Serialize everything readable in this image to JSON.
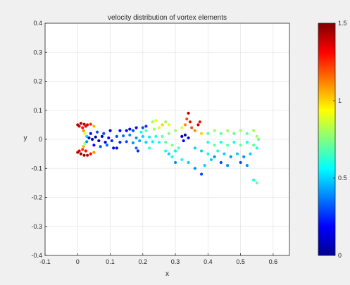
{
  "chart_data": {
    "type": "scatter",
    "title": "velocity distribution of vortex elements",
    "xlabel": "x",
    "ylabel": "y",
    "xlim": [
      -0.1,
      0.65
    ],
    "ylim": [
      -0.4,
      0.4
    ],
    "xticks": [
      -0.1,
      0,
      0.1,
      0.2,
      0.3,
      0.4,
      0.5,
      0.6
    ],
    "yticks": [
      -0.4,
      -0.3,
      -0.2,
      -0.1,
      0,
      0.1,
      0.2,
      0.3,
      0.4
    ],
    "xtick_labels": [
      "-0.1",
      "0",
      "0.1",
      "0.2",
      "0.3",
      "0.4",
      "0.5",
      "0.6"
    ],
    "ytick_labels": [
      "-0.4",
      "-0.3",
      "-0.2",
      "-0.1",
      "0",
      "0.1",
      "0.2",
      "0.3",
      "0.4"
    ],
    "grid": true,
    "colormap": "jet",
    "colorbar": {
      "limits": [
        0,
        1.5
      ],
      "ticks": [
        0,
        0.5,
        1,
        1.5
      ],
      "tick_labels": [
        "0",
        "0.5",
        "1",
        "1.5"
      ]
    },
    "points": [
      [
        0.0,
        0.05,
        1.4
      ],
      [
        0.01,
        0.055,
        1.45
      ],
      [
        0.02,
        0.052,
        1.4
      ],
      [
        0.03,
        0.05,
        1.35
      ],
      [
        0.04,
        0.052,
        1.25
      ],
      [
        0.05,
        0.045,
        1.05
      ],
      [
        0.005,
        0.045,
        1.38
      ],
      [
        0.015,
        0.04,
        1.3
      ],
      [
        0.025,
        0.045,
        1.35
      ],
      [
        0.018,
        0.03,
        1.1
      ],
      [
        0.022,
        0.02,
        0.9
      ],
      [
        0.028,
        0.01,
        0.5
      ],
      [
        0.0,
        -0.045,
        1.4
      ],
      [
        0.01,
        -0.05,
        1.45
      ],
      [
        0.02,
        -0.055,
        1.45
      ],
      [
        0.03,
        -0.055,
        1.4
      ],
      [
        0.04,
        -0.05,
        1.3
      ],
      [
        0.05,
        -0.045,
        1.1
      ],
      [
        0.005,
        -0.04,
        1.35
      ],
      [
        0.015,
        -0.035,
        1.25
      ],
      [
        0.025,
        -0.04,
        1.3
      ],
      [
        0.018,
        -0.025,
        1.05
      ],
      [
        0.022,
        -0.015,
        0.8
      ],
      [
        0.028,
        -0.008,
        0.4
      ],
      [
        0.035,
        0.005,
        0.1
      ],
      [
        0.045,
        0.0,
        0.05
      ],
      [
        0.055,
        0.008,
        0.08
      ],
      [
        0.065,
        -0.005,
        0.05
      ],
      [
        0.075,
        0.01,
        0.1
      ],
      [
        0.085,
        -0.01,
        0.15
      ],
      [
        0.095,
        0.005,
        0.2
      ],
      [
        0.105,
        -0.005,
        0.25
      ],
      [
        0.04,
        0.02,
        0.2
      ],
      [
        0.05,
        -0.02,
        0.2
      ],
      [
        0.06,
        0.025,
        0.3
      ],
      [
        0.07,
        -0.025,
        0.3
      ],
      [
        0.08,
        0.02,
        0.3
      ],
      [
        0.09,
        -0.02,
        0.35
      ],
      [
        0.12,
        0.01,
        0.3
      ],
      [
        0.13,
        -0.01,
        0.25
      ],
      [
        0.14,
        0.012,
        0.35
      ],
      [
        0.15,
        -0.008,
        0.3
      ],
      [
        0.16,
        0.015,
        0.4
      ],
      [
        0.17,
        -0.012,
        0.4
      ],
      [
        0.18,
        0.005,
        0.4
      ],
      [
        0.19,
        -0.005,
        0.45
      ],
      [
        0.2,
        0.01,
        0.5
      ],
      [
        0.21,
        -0.01,
        0.5
      ],
      [
        0.22,
        0.008,
        0.55
      ],
      [
        0.23,
        -0.008,
        0.55
      ],
      [
        0.24,
        0.01,
        0.6
      ],
      [
        0.25,
        -0.01,
        0.6
      ],
      [
        0.15,
        0.03,
        0.2
      ],
      [
        0.16,
        0.035,
        0.15
      ],
      [
        0.17,
        0.03,
        0.3
      ],
      [
        0.18,
        -0.03,
        0.35
      ],
      [
        0.195,
        0.025,
        0.6
      ],
      [
        0.21,
        0.03,
        0.7
      ],
      [
        0.22,
        -0.03,
        0.65
      ],
      [
        0.235,
        0.035,
        0.8
      ],
      [
        0.26,
        0.01,
        0.7
      ],
      [
        0.27,
        -0.01,
        0.7
      ],
      [
        0.28,
        0.02,
        0.75
      ],
      [
        0.29,
        -0.02,
        0.75
      ],
      [
        0.3,
        0.03,
        0.8
      ],
      [
        0.31,
        -0.03,
        0.7
      ],
      [
        0.32,
        0.04,
        0.9
      ],
      [
        0.33,
        0.05,
        1.1
      ],
      [
        0.335,
        0.07,
        1.2
      ],
      [
        0.34,
        0.09,
        1.4
      ],
      [
        0.345,
        0.06,
        1.3
      ],
      [
        0.35,
        0.04,
        1.2
      ],
      [
        0.36,
        0.03,
        1.1
      ],
      [
        0.37,
        0.05,
        1.4
      ],
      [
        0.375,
        0.06,
        1.3
      ],
      [
        0.38,
        0.02,
        1.0
      ],
      [
        0.32,
        0.01,
        0.1
      ],
      [
        0.33,
        0.015,
        0.05
      ],
      [
        0.34,
        0.005,
        0.15
      ],
      [
        0.325,
        -0.005,
        0.2
      ],
      [
        0.28,
        -0.05,
        0.5
      ],
      [
        0.29,
        -0.06,
        0.6
      ],
      [
        0.3,
        -0.08,
        0.4
      ],
      [
        0.32,
        -0.07,
        0.6
      ],
      [
        0.34,
        -0.08,
        0.5
      ],
      [
        0.36,
        -0.1,
        0.4
      ],
      [
        0.38,
        -0.12,
        0.3
      ],
      [
        0.39,
        -0.09,
        0.5
      ],
      [
        0.4,
        -0.05,
        0.6
      ],
      [
        0.41,
        -0.07,
        0.5
      ],
      [
        0.42,
        -0.06,
        0.4
      ],
      [
        0.43,
        -0.04,
        0.6
      ],
      [
        0.4,
        0.02,
        0.7
      ],
      [
        0.42,
        0.03,
        0.8
      ],
      [
        0.44,
        0.02,
        0.7
      ],
      [
        0.46,
        0.03,
        0.8
      ],
      [
        0.48,
        0.02,
        0.7
      ],
      [
        0.5,
        0.03,
        0.8
      ],
      [
        0.52,
        0.02,
        0.7
      ],
      [
        0.54,
        0.03,
        0.8
      ],
      [
        0.4,
        -0.01,
        0.6
      ],
      [
        0.42,
        -0.02,
        0.7
      ],
      [
        0.44,
        -0.01,
        0.6
      ],
      [
        0.46,
        -0.02,
        0.7
      ],
      [
        0.48,
        -0.01,
        0.6
      ],
      [
        0.5,
        -0.02,
        0.7
      ],
      [
        0.52,
        -0.01,
        0.6
      ],
      [
        0.54,
        -0.02,
        0.7
      ],
      [
        0.45,
        -0.05,
        0.5
      ],
      [
        0.47,
        -0.06,
        0.4
      ],
      [
        0.49,
        -0.05,
        0.5
      ],
      [
        0.51,
        -0.06,
        0.4
      ],
      [
        0.53,
        -0.05,
        0.5
      ],
      [
        0.55,
        -0.03,
        0.6
      ],
      [
        0.555,
        0.0,
        0.7
      ],
      [
        0.55,
        0.01,
        0.8
      ],
      [
        0.25,
        0.04,
        0.9
      ],
      [
        0.26,
        0.05,
        1.0
      ],
      [
        0.27,
        0.06,
        0.8
      ],
      [
        0.28,
        0.05,
        0.9
      ],
      [
        0.23,
        0.06,
        0.8
      ],
      [
        0.24,
        0.065,
        0.9
      ],
      [
        0.27,
        -0.04,
        0.6
      ],
      [
        0.3,
        -0.04,
        0.55
      ],
      [
        0.44,
        -0.08,
        0.3
      ],
      [
        0.46,
        -0.09,
        0.4
      ],
      [
        0.5,
        -0.08,
        0.3
      ],
      [
        0.52,
        -0.09,
        0.4
      ],
      [
        0.54,
        -0.14,
        0.6
      ],
      [
        0.55,
        -0.15,
        0.7
      ],
      [
        0.36,
        -0.03,
        0.5
      ],
      [
        0.38,
        -0.04,
        0.5
      ],
      [
        0.2,
        0.04,
        0.3
      ],
      [
        0.21,
        0.045,
        0.25
      ],
      [
        0.18,
        0.04,
        0.2
      ],
      [
        0.185,
        -0.04,
        0.25
      ],
      [
        0.13,
        0.03,
        0.2
      ],
      [
        0.12,
        -0.03,
        0.2
      ],
      [
        0.1,
        0.03,
        0.15
      ],
      [
        0.11,
        -0.03,
        0.2
      ]
    ]
  }
}
